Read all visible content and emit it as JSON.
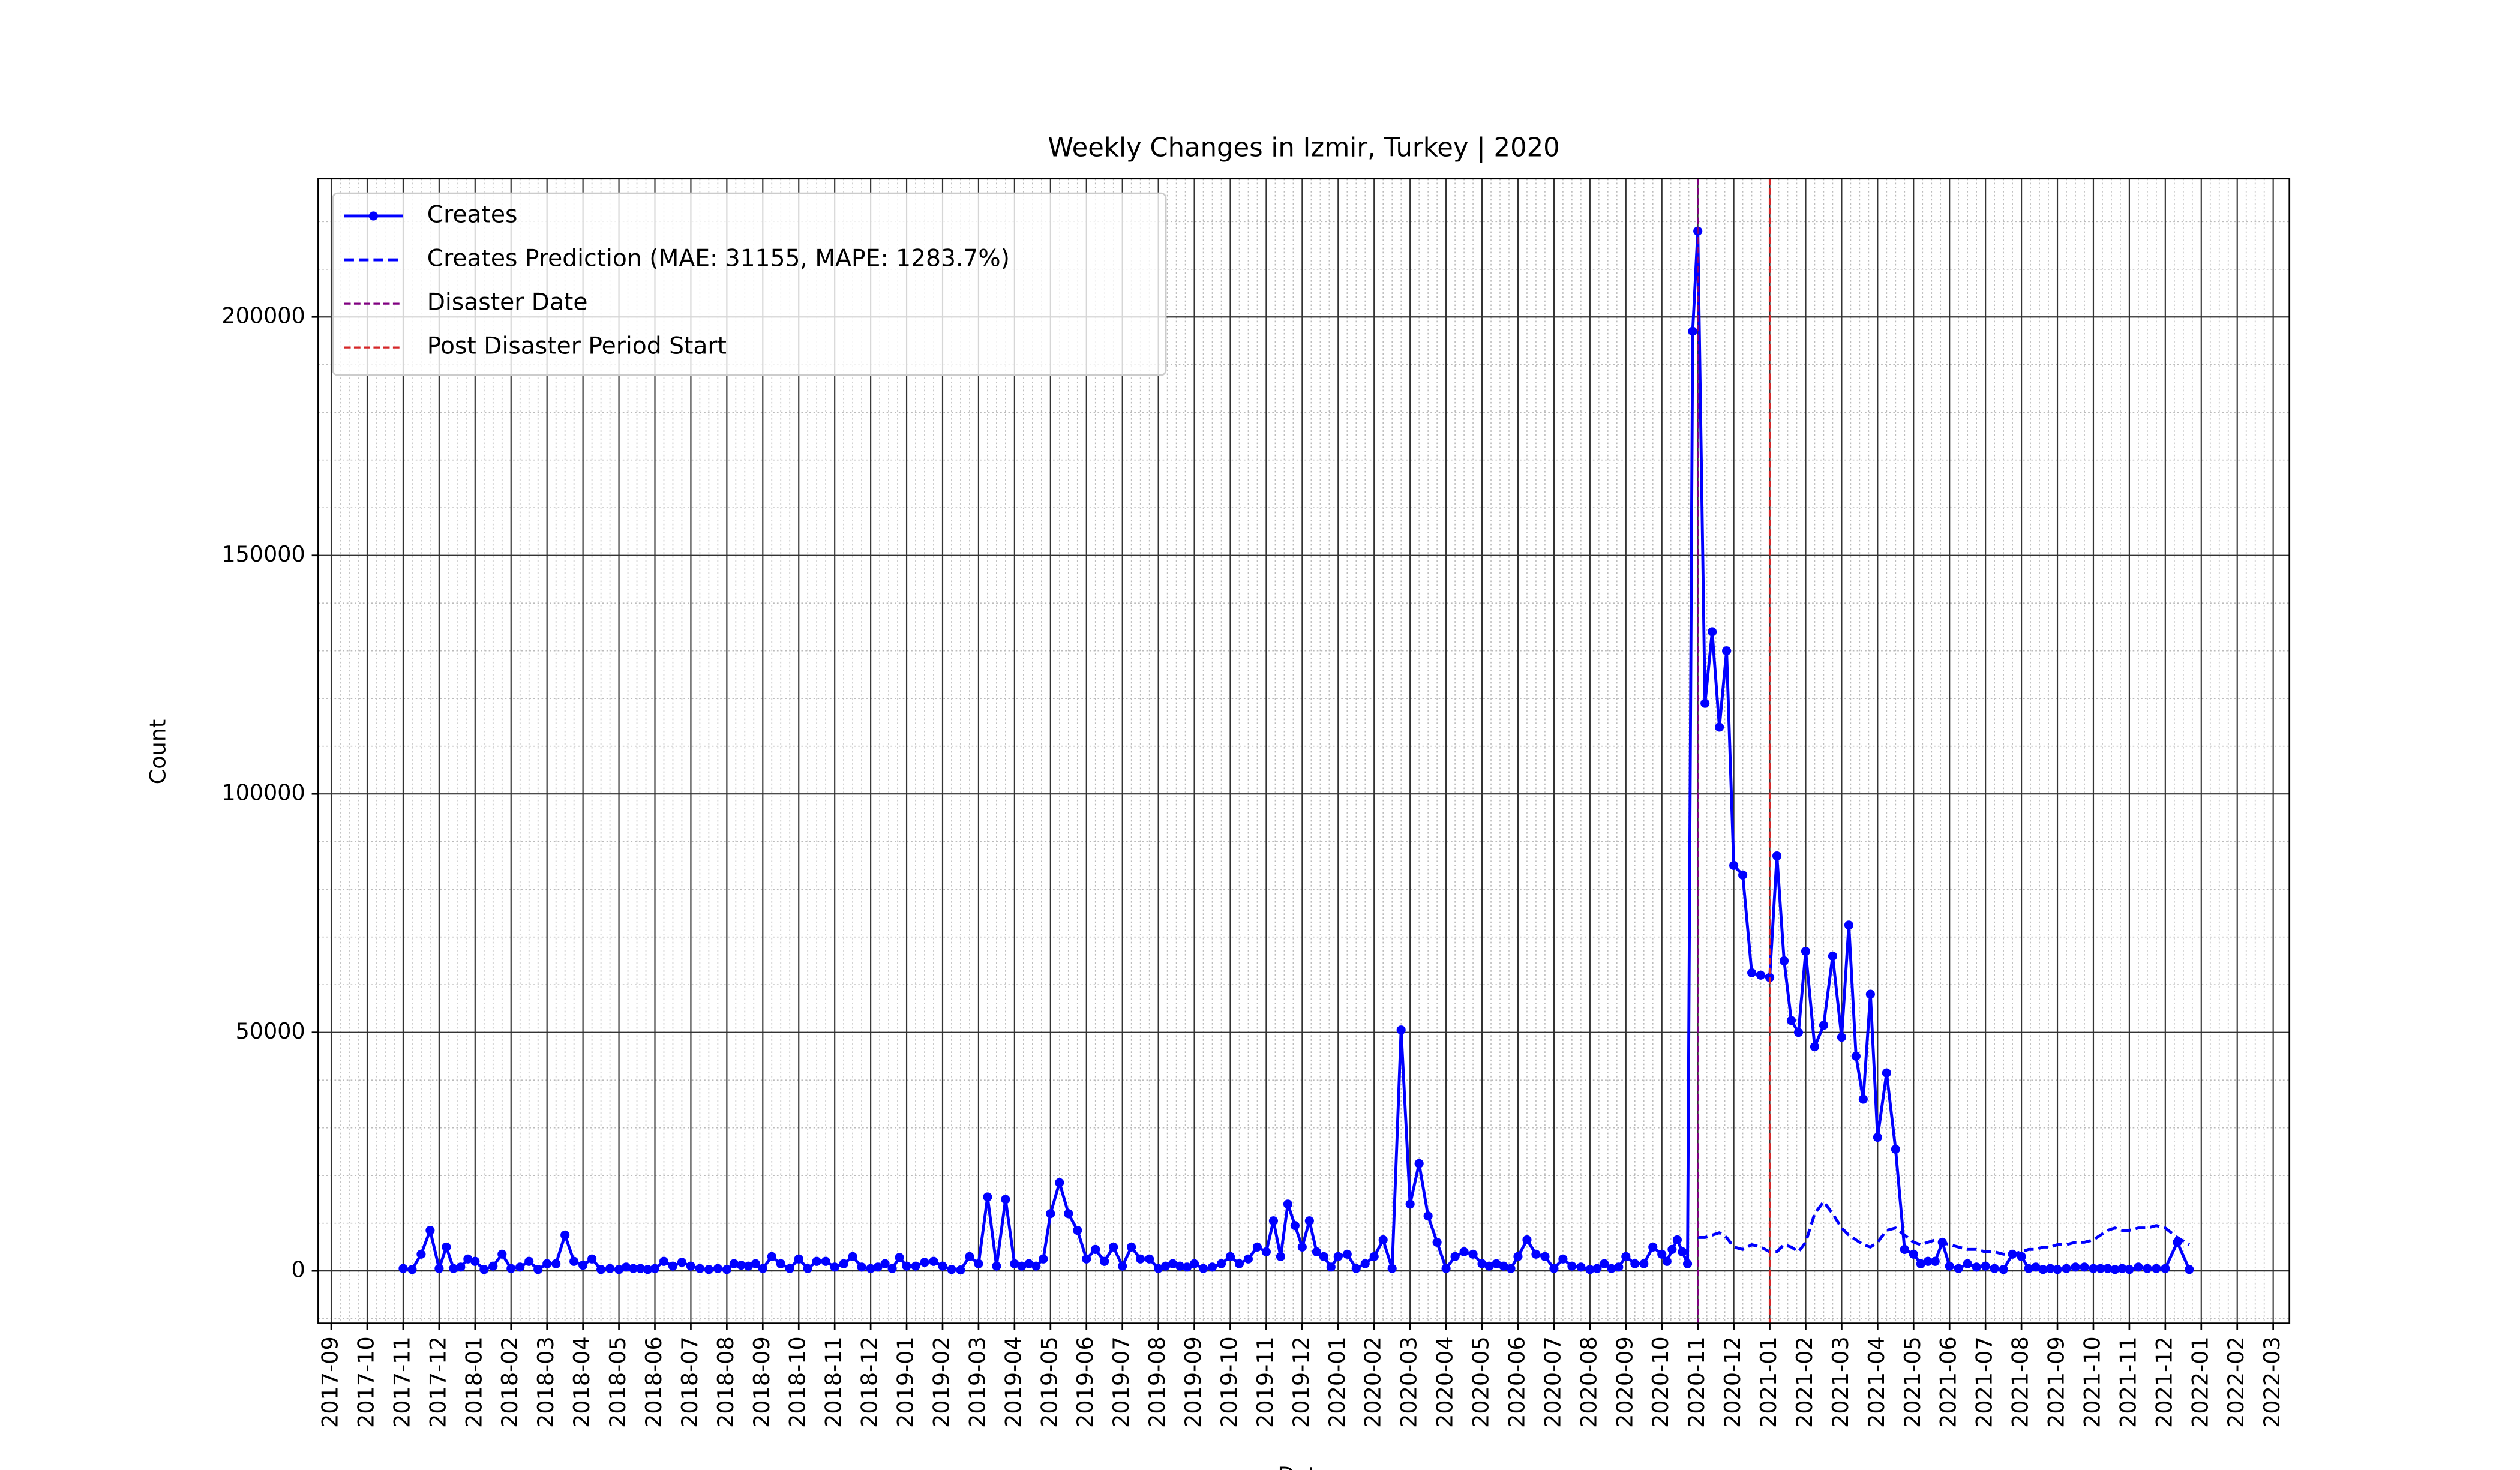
{
  "chart_data": {
    "type": "line",
    "title": "Weekly Changes in Izmir, Turkey | 2020",
    "xlabel": "Date",
    "ylabel": "Count",
    "ylim": [
      -11000,
      229000
    ],
    "yticks": [
      0,
      50000,
      100000,
      150000,
      200000
    ],
    "xticks": [
      "2017-09",
      "2017-10",
      "2017-11",
      "2017-12",
      "2018-01",
      "2018-02",
      "2018-03",
      "2018-04",
      "2018-05",
      "2018-06",
      "2018-07",
      "2018-08",
      "2018-09",
      "2018-10",
      "2018-11",
      "2018-12",
      "2019-01",
      "2019-02",
      "2019-03",
      "2019-04",
      "2019-05",
      "2019-06",
      "2019-07",
      "2019-08",
      "2019-09",
      "2019-10",
      "2019-11",
      "2019-12",
      "2020-01",
      "2020-02",
      "2020-03",
      "2020-04",
      "2020-05",
      "2020-06",
      "2020-07",
      "2020-08",
      "2020-09",
      "2020-10",
      "2020-11",
      "2020-12",
      "2021-01",
      "2021-02",
      "2021-03",
      "2021-04",
      "2021-05",
      "2021-06",
      "2021-07",
      "2021-08",
      "2021-09",
      "2021-10",
      "2021-11",
      "2021-12",
      "2022-01",
      "2022-02",
      "2022-03"
    ],
    "grid": true,
    "legend": "upper left",
    "series": [
      {
        "name": "Creates",
        "color": "#0000ff",
        "style": "solid",
        "marker": true,
        "x": [
          "2017-11",
          "2017-11",
          "2017-11",
          "2017-11",
          "2017-12",
          "2017-12",
          "2017-12",
          "2017-12",
          "2017-12",
          "2018-01",
          "2018-01",
          "2018-01",
          "2018-01",
          "2018-02",
          "2018-02",
          "2018-02",
          "2018-02",
          "2018-03",
          "2018-03",
          "2018-03",
          "2018-03",
          "2018-04",
          "2018-04",
          "2018-04",
          "2018-04",
          "2018-05",
          "2018-05",
          "2018-05",
          "2018-05",
          "2018-05",
          "2018-06",
          "2018-06",
          "2018-06",
          "2018-06",
          "2018-07",
          "2018-07",
          "2018-07",
          "2018-07",
          "2018-08",
          "2018-08",
          "2018-08",
          "2018-08",
          "2018-08",
          "2018-09",
          "2018-09",
          "2018-09",
          "2018-09",
          "2018-10",
          "2018-10",
          "2018-10",
          "2018-10",
          "2018-11",
          "2018-11",
          "2018-11",
          "2018-11",
          "2018-12",
          "2018-12",
          "2018-12",
          "2018-12",
          "2018-12",
          "2019-01",
          "2019-01",
          "2019-01",
          "2019-01",
          "2019-02",
          "2019-02",
          "2019-02",
          "2019-02",
          "2019-03",
          "2019-03",
          "2019-03",
          "2019-03",
          "2019-04",
          "2019-04",
          "2019-04",
          "2019-04",
          "2019-04",
          "2019-05",
          "2019-05",
          "2019-05",
          "2019-05",
          "2019-06",
          "2019-06",
          "2019-06",
          "2019-06",
          "2019-07",
          "2019-07",
          "2019-07",
          "2019-07",
          "2019-08",
          "2019-08",
          "2019-08",
          "2019-08",
          "2019-08",
          "2019-09",
          "2019-09",
          "2019-09",
          "2019-09",
          "2019-10",
          "2019-10",
          "2019-10",
          "2019-10",
          "2019-11",
          "2019-11",
          "2019-11",
          "2019-11",
          "2019-11",
          "2019-12",
          "2019-12",
          "2019-12",
          "2019-12",
          "2019-12",
          "2020-01",
          "2020-01",
          "2020-01",
          "2020-01",
          "2020-02",
          "2020-02",
          "2020-02",
          "2020-02",
          "2020-03",
          "2020-03",
          "2020-03",
          "2020-03",
          "2020-04",
          "2020-04",
          "2020-04",
          "2020-04",
          "2020-05",
          "2020-05",
          "2020-05",
          "2020-05",
          "2020-05",
          "2020-06",
          "2020-06",
          "2020-06",
          "2020-06",
          "2020-07",
          "2020-07",
          "2020-07",
          "2020-07",
          "2020-08",
          "2020-08",
          "2020-08",
          "2020-08",
          "2020-08",
          "2020-09",
          "2020-09",
          "2020-09",
          "2020-09",
          "2020-10",
          "2020-10",
          "2020-10",
          "2020-10",
          "2020-10",
          "2020-10",
          "2020-10",
          "2020-11",
          "2020-11",
          "2020-11",
          "2020-11",
          "2020-11",
          "2020-12",
          "2020-12",
          "2020-12",
          "2020-12",
          "2021-01",
          "2021-01",
          "2021-01",
          "2021-01",
          "2021-01",
          "2021-02",
          "2021-02",
          "2021-02",
          "2021-02",
          "2021-03",
          "2021-03",
          "2021-03",
          "2021-03",
          "2021-03",
          "2021-04",
          "2021-04",
          "2021-04",
          "2021-04",
          "2021-05",
          "2021-05",
          "2021-05",
          "2021-05",
          "2021-05",
          "2021-06",
          "2021-06",
          "2021-06",
          "2021-06",
          "2021-07",
          "2021-07",
          "2021-07",
          "2021-07",
          "2021-08",
          "2021-08",
          "2021-08",
          "2021-08",
          "2021-08",
          "2021-09",
          "2021-09",
          "2021-09",
          "2021-09",
          "2021-10",
          "2021-10",
          "2021-10",
          "2021-10",
          "2021-10",
          "2021-11",
          "2021-11",
          "2021-11",
          "2021-11",
          "2021-12",
          "2021-12",
          "2021-12"
        ],
        "values": [
          500,
          300,
          3500,
          8500,
          500,
          5000,
          500,
          800,
          2500,
          2000,
          300,
          1000,
          3500,
          500,
          800,
          2000,
          300,
          1500,
          1500,
          7500,
          2000,
          1200,
          2500,
          300,
          500,
          300,
          800,
          500,
          500,
          300,
          500,
          2000,
          1000,
          1800,
          1000,
          500,
          300,
          500,
          300,
          1500,
          1200,
          1000,
          1500,
          500,
          3000,
          1500,
          500,
          2500,
          500,
          2000,
          2000,
          800,
          1500,
          3000,
          800,
          500,
          800,
          1500,
          500,
          2800,
          1000,
          1000,
          1800,
          2000,
          1000,
          300,
          200,
          3000,
          1500,
          15500,
          1000,
          15000,
          1500,
          1000,
          1500,
          1000,
          2500,
          12000,
          18500,
          12000,
          8500,
          2500,
          4500,
          2000,
          5000,
          1000,
          5000,
          2500,
          2500,
          500,
          1000,
          1500,
          1000,
          800,
          1500,
          500,
          800,
          1500,
          3000,
          1500,
          2500,
          5000,
          4000,
          10500,
          3000,
          14000,
          9500,
          5000,
          10500,
          4000,
          3000,
          800,
          3000,
          3500,
          500,
          1500,
          3000,
          6500,
          500,
          50500,
          14000,
          22500,
          11500,
          6000,
          500,
          3000,
          4000,
          3500,
          1500,
          1000,
          1500,
          1000,
          500,
          3000,
          6500,
          3500,
          3000,
          500,
          2500,
          1000,
          800,
          300,
          500,
          1500,
          500,
          800,
          3000,
          1500,
          1500,
          5000,
          3500,
          2000,
          4500,
          6500,
          4000,
          1500,
          197000,
          218000,
          119000,
          134000,
          114000,
          130000,
          85000,
          83000,
          62500,
          62000,
          61500,
          87000,
          65000,
          52500,
          50000,
          67000,
          47000,
          51500,
          66000,
          49000,
          72500,
          45000,
          36000,
          58000,
          28000,
          41500,
          25500,
          4500,
          3500,
          1500,
          2000,
          2000,
          6000,
          1000,
          500,
          1500,
          800,
          1000,
          500,
          300,
          3500,
          3000,
          500,
          800,
          300,
          500,
          300,
          500,
          800,
          800,
          500,
          500,
          500,
          300,
          500,
          300,
          800,
          500,
          500,
          500,
          6000,
          300
        ]
      },
      {
        "name": "Creates Prediction (MAE: 31155, MAPE: 1283.7%)",
        "color": "#0000ff",
        "style": "dashed",
        "marker": false,
        "x": [
          "2020-11",
          "2020-11",
          "2020-11",
          "2020-11",
          "2020-11",
          "2020-12",
          "2020-12",
          "2020-12",
          "2020-12",
          "2021-01",
          "2021-01",
          "2021-01",
          "2021-01",
          "2021-01",
          "2021-02",
          "2021-02",
          "2021-02",
          "2021-02",
          "2021-03",
          "2021-03",
          "2021-03",
          "2021-03",
          "2021-03",
          "2021-04",
          "2021-04",
          "2021-04",
          "2021-04",
          "2021-05",
          "2021-05",
          "2021-05",
          "2021-05",
          "2021-05",
          "2021-06",
          "2021-06",
          "2021-06",
          "2021-06",
          "2021-07",
          "2021-07",
          "2021-07",
          "2021-07",
          "2021-08",
          "2021-08",
          "2021-08",
          "2021-08",
          "2021-08",
          "2021-09",
          "2021-09",
          "2021-09",
          "2021-09",
          "2021-10",
          "2021-10",
          "2021-10",
          "2021-10",
          "2021-10",
          "2021-11",
          "2021-11",
          "2021-11",
          "2021-11",
          "2021-12",
          "2021-12",
          "2021-12"
        ],
        "values": [
          7000,
          7000,
          7500,
          8000,
          7000,
          5000,
          4500,
          5500,
          5000,
          4000,
          4000,
          5500,
          5000,
          4000,
          6000,
          12000,
          14500,
          12000,
          9000,
          7500,
          6500,
          5500,
          5000,
          6000,
          8500,
          9000,
          7500,
          6000,
          5500,
          6000,
          6500,
          6000,
          5500,
          5000,
          4500,
          4500,
          4000,
          4000,
          3500,
          3500,
          4000,
          4500,
          4500,
          5000,
          5000,
          5500,
          5500,
          6000,
          6000,
          6500,
          7500,
          8500,
          9000,
          8500,
          8500,
          9000,
          9000,
          9500,
          9000,
          7000,
          5500
        ]
      }
    ],
    "vlines": [
      {
        "name": "Disaster Date",
        "x": "2020-11",
        "color": "#800080"
      },
      {
        "name": "Post Disaster Period Start",
        "x": "2021-01",
        "color": "#d62728"
      }
    ]
  }
}
